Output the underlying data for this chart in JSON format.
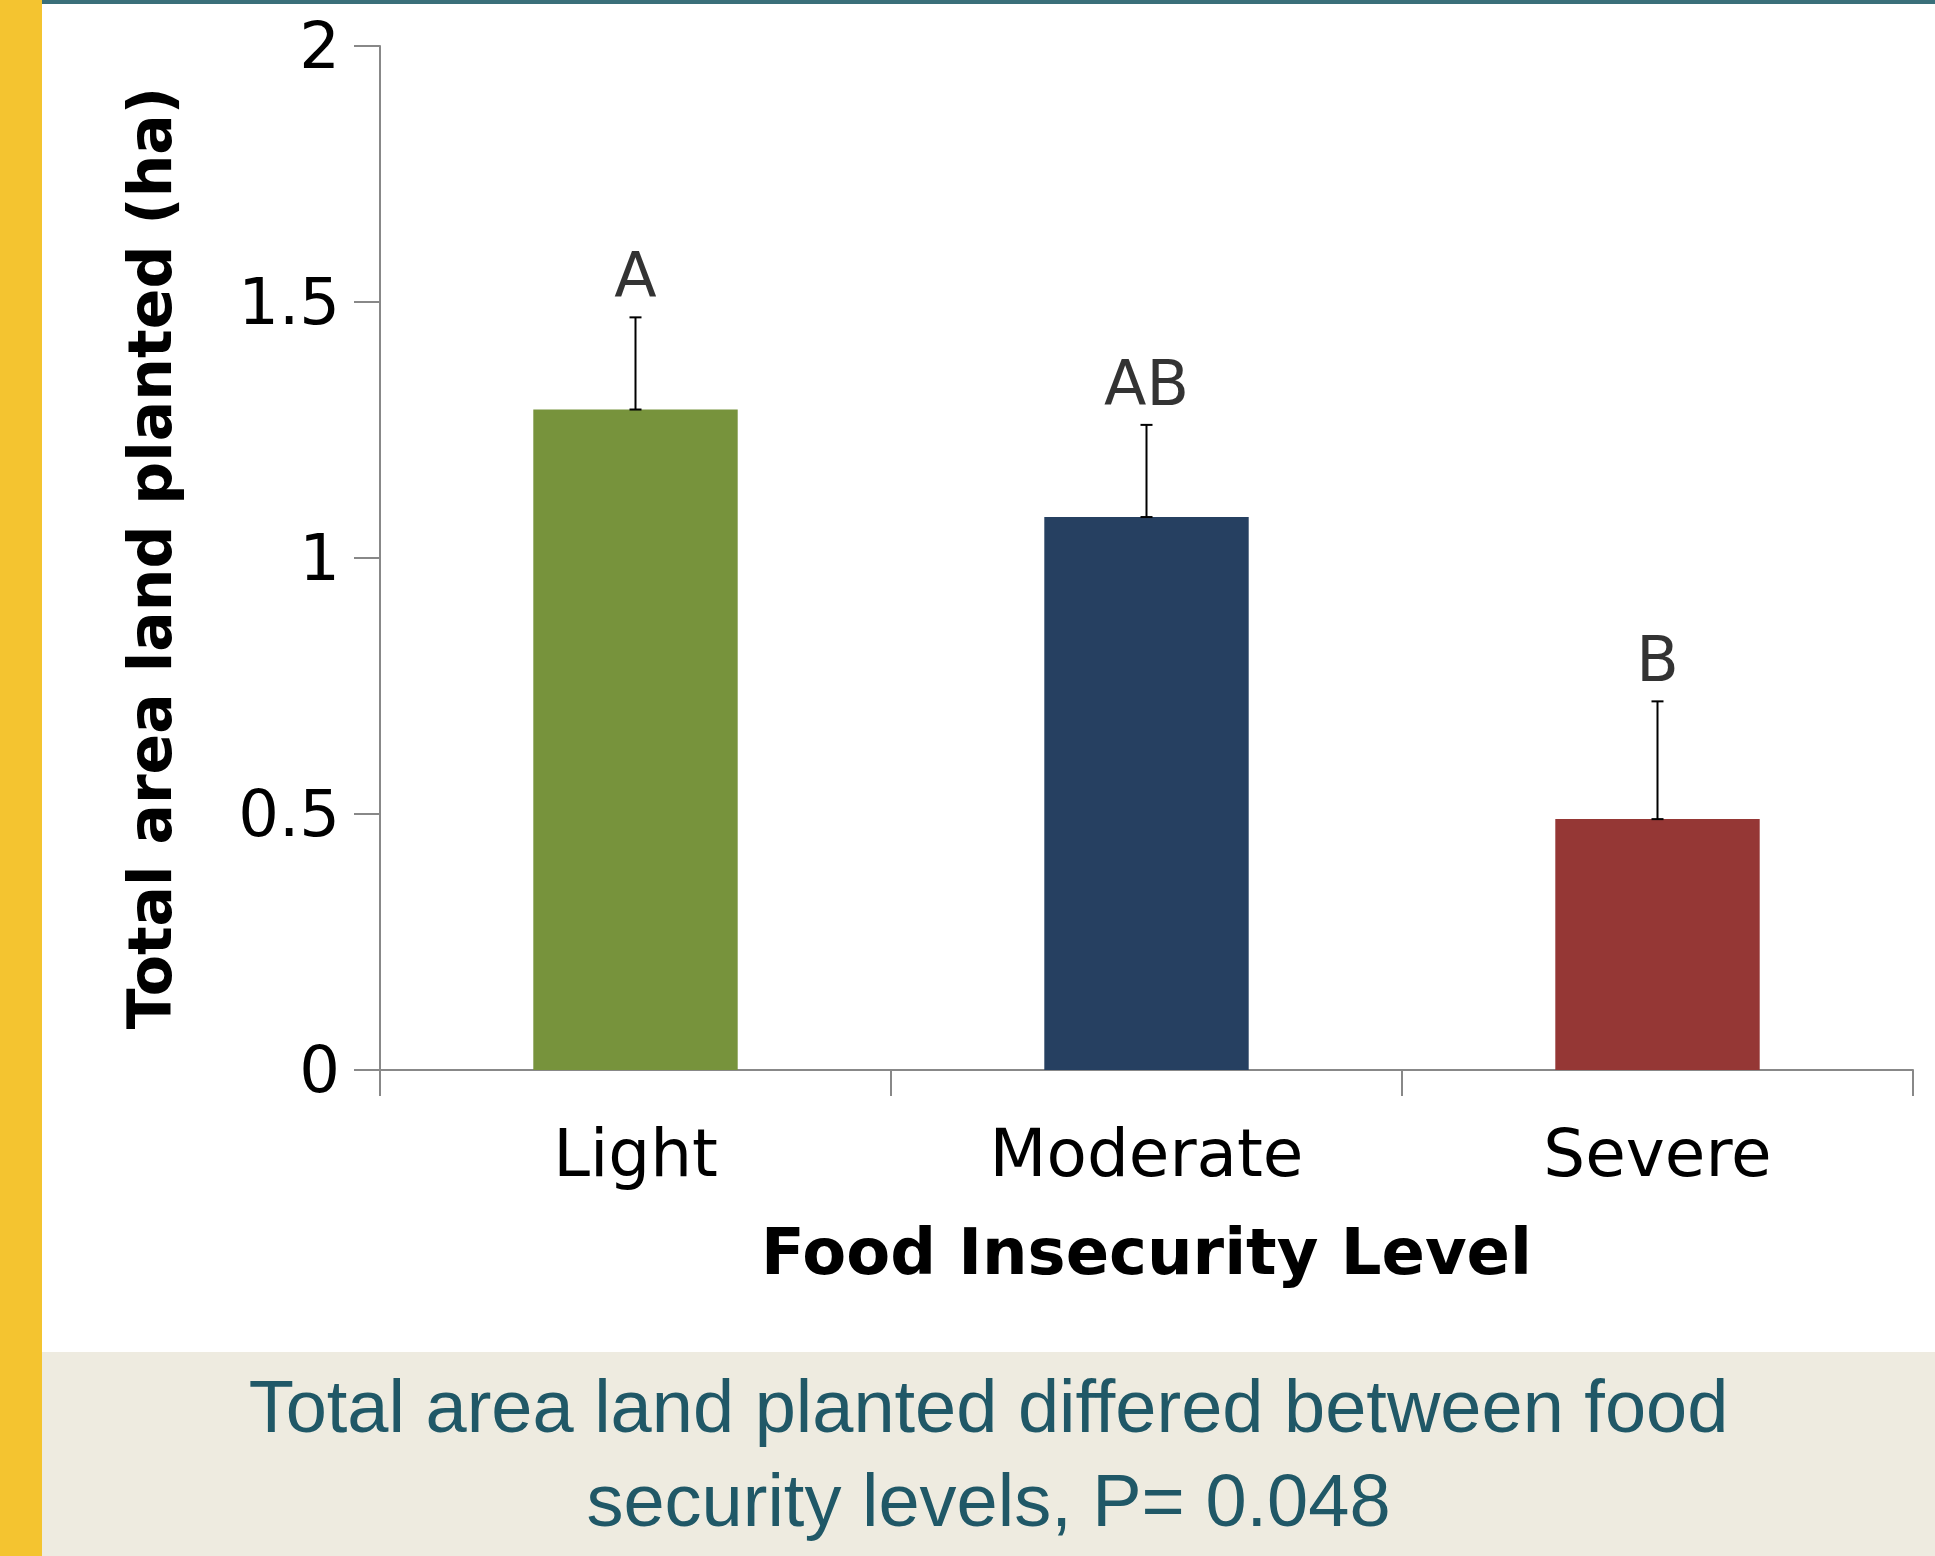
{
  "chart_data": {
    "type": "bar",
    "xlabel": "Food Insecurity Level",
    "ylabel": "Total area land planted (ha)",
    "categories": [
      "Light",
      "Moderate",
      "Severe"
    ],
    "values": [
      1.29,
      1.08,
      0.49
    ],
    "colors": [
      "#77933c",
      "#264061",
      "#953735"
    ],
    "errors": [
      [
        1.29,
        1.47
      ],
      [
        1.08,
        1.26
      ],
      [
        0.49,
        0.72
      ]
    ],
    "ylim": [
      0,
      2
    ],
    "yticks": [
      0,
      0.5,
      1,
      1.5,
      2
    ],
    "grid": false,
    "annotations": [
      {
        "text": "A",
        "x": "Light",
        "y": 1.47
      },
      {
        "text": "AB",
        "x": "Moderate",
        "y": 1.26
      },
      {
        "text": "B",
        "x": "Severe",
        "y": 0.72
      },
      "Total area land planted differed between food security levels, P= 0.048"
    ]
  }
}
